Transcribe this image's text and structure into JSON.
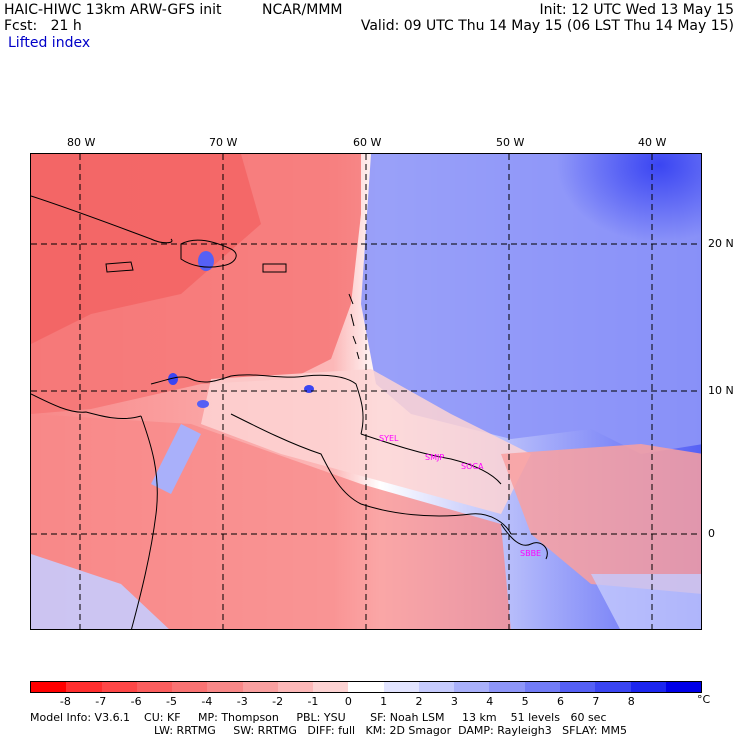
{
  "header": {
    "model_line": "HAIC-HIWC 13km ARW-GFS init",
    "org": "NCAR/MMM",
    "fcst_line": "Fcst:   21 h",
    "init_line": "Init: 12 UTC Wed 13 May 15",
    "valid_line": "Valid: 09 UTC Thu 14 May 15 (06 LST Thu 14 May 15)",
    "field_name": "Lifted index"
  },
  "map": {
    "lon_labels": [
      "80 W",
      "70 W",
      "60 W",
      "50 W",
      "40 W"
    ],
    "lat_labels": [
      "20 N",
      "10 N",
      "0"
    ],
    "stations": [
      "SYEL",
      "SMJP",
      "SOCA",
      "SBBE"
    ]
  },
  "colorbar": {
    "ticks": [
      "-8",
      "-7",
      "-6",
      "-5",
      "-4",
      "-3",
      "-2",
      "-1",
      "0",
      "1",
      "2",
      "3",
      "4",
      "5",
      "6",
      "7",
      "8"
    ],
    "unit": "°C",
    "colors": [
      "#ff0000",
      "#ff2e2e",
      "#fe4747",
      "#fb5e5e",
      "#f97373",
      "#f88888",
      "#f9a0a0",
      "#fcb8b8",
      "#fdd3d3",
      "#ffffff",
      "#e2e4ff",
      "#c6cbfd",
      "#a9b0fa",
      "#8e96f8",
      "#727cf6",
      "#5560f5",
      "#3a45f2",
      "#1c26ef",
      "#0000e8"
    ]
  },
  "footer": {
    "line1": "Model Info: V3.6.1    CU: KF     MP: Thompson     PBL: YSU       SF: Noah LSM     13 km    51 levels   60 sec",
    "line2": "LW: RRTMG     SW: RRTMG   DIFF: full   KM: 2D Smagor  DAMP: Rayleigh3   SFLAY: MM5"
  }
}
